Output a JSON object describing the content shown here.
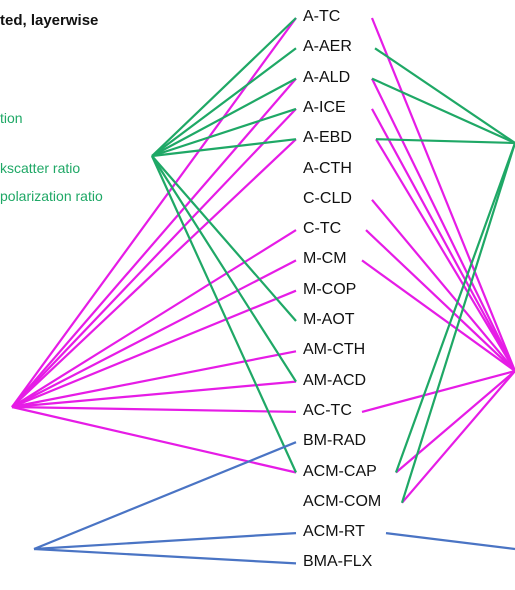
{
  "colors": {
    "magenta": "#e61ce6",
    "green": "#1fa866",
    "blue": "#4a74c4",
    "text": "#111111"
  },
  "header_fragment": "ted, layerwise",
  "legend_fragments": [
    {
      "text": "tion",
      "color": "#1fa866"
    },
    {
      "text": "kscatter ratio",
      "color": "#1fa866"
    },
    {
      "text": "polarization ratio",
      "color": "#1fa866"
    }
  ],
  "products": [
    "A-TC",
    "A-AER",
    "A-ALD",
    "A-ICE",
    "A-EBD",
    "A-CTH",
    "C-CLD",
    "C-TC",
    "M-CM",
    "M-COP",
    "M-AOT",
    "AM-CTH",
    "AM-ACD",
    "AC-TC",
    "BM-RAD",
    "ACM-CAP",
    "ACM-COM",
    "ACM-RT",
    "BMA-FLX"
  ],
  "links": {
    "left_magenta": [
      "A-TC",
      "A-ALD",
      "A-ICE",
      "A-EBD",
      "C-TC",
      "M-CM",
      "M-COP",
      "AM-CTH",
      "AM-ACD",
      "AC-TC",
      "ACM-CAP"
    ],
    "left_green": [
      "A-TC",
      "A-AER",
      "A-ALD",
      "A-ICE",
      "A-EBD",
      "M-AOT",
      "AM-ACD",
      "ACM-CAP"
    ],
    "left_blue": [
      "BM-RAD",
      "ACM-RT",
      "BMA-FLX"
    ],
    "right_magenta": [
      "A-TC",
      "A-ALD",
      "A-ICE",
      "A-EBD",
      "C-CLD",
      "C-TC",
      "M-CM",
      "AC-TC",
      "ACM-CAP",
      "ACM-COM"
    ],
    "right_green": [
      "A-AER",
      "A-ALD",
      "A-EBD",
      "ACM-CAP",
      "ACM-COM"
    ],
    "right_blue": [
      "ACM-RT"
    ]
  }
}
